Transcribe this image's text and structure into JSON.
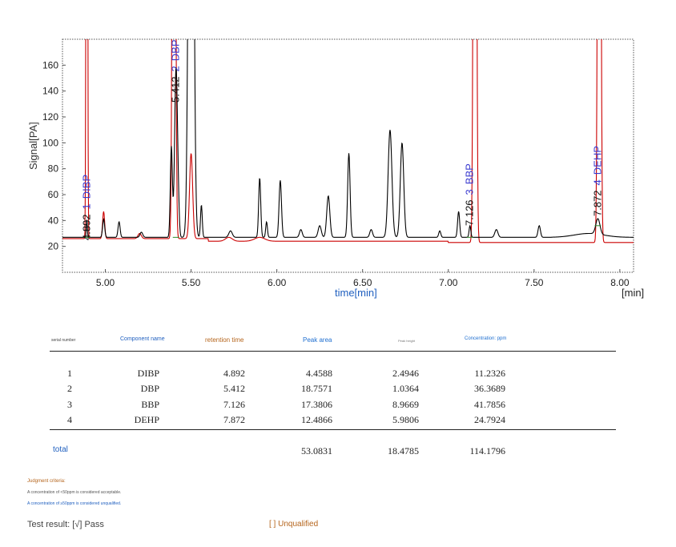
{
  "chart_data": {
    "type": "line",
    "ylabel": "Signal[PA]",
    "xlabel": "time[min]",
    "x_unit": "[min]",
    "xlim": [
      4.75,
      8.08
    ],
    "ylim": [
      0,
      180
    ],
    "x_ticks": [
      "5.00",
      "5.50",
      "6.00",
      "6.50",
      "7.00",
      "7.50",
      "8.00"
    ],
    "y_ticks": [
      "20",
      "40",
      "60",
      "80",
      "100",
      "120",
      "140",
      "160"
    ],
    "series": [
      {
        "color": "#cc0000",
        "baseline": 24,
        "peaks": [
          [
            4.892,
            0.0035,
            900
          ],
          [
            4.99,
            0.006,
            21
          ],
          [
            5.4,
            0.007,
            900
          ],
          [
            5.5,
            0.009,
            66
          ],
          [
            5.2,
            0.01,
            4
          ],
          [
            7.155,
            0.007,
            900
          ],
          [
            7.88,
            0.007,
            900
          ],
          [
            5.72,
            0.02,
            3
          ],
          [
            5.9,
            0.03,
            3
          ]
        ]
      },
      {
        "color": "#000000",
        "baseline": 27,
        "peaks": [
          [
            4.892,
            0.003,
            14
          ],
          [
            4.99,
            0.006,
            14
          ],
          [
            5.08,
            0.006,
            12
          ],
          [
            5.21,
            0.008,
            4
          ],
          [
            5.385,
            0.006,
            70
          ],
          [
            5.412,
            0.008,
            130
          ],
          [
            5.425,
            0.006,
            20
          ],
          [
            5.5,
            0.012,
            700
          ],
          [
            5.56,
            0.005,
            25
          ],
          [
            5.73,
            0.01,
            5
          ],
          [
            5.9,
            0.006,
            46
          ],
          [
            5.94,
            0.005,
            12
          ],
          [
            6.02,
            0.007,
            44
          ],
          [
            6.14,
            0.008,
            6
          ],
          [
            6.25,
            0.009,
            9
          ],
          [
            6.3,
            0.009,
            32
          ],
          [
            6.42,
            0.007,
            65
          ],
          [
            6.55,
            0.008,
            6
          ],
          [
            6.66,
            0.011,
            83
          ],
          [
            6.73,
            0.01,
            73
          ],
          [
            6.95,
            0.006,
            5
          ],
          [
            7.06,
            0.006,
            20
          ],
          [
            7.126,
            0.005,
            9
          ],
          [
            7.28,
            0.009,
            6
          ],
          [
            7.53,
            0.007,
            9
          ],
          [
            7.872,
            0.012,
            12
          ]
        ]
      }
    ],
    "annotations": [
      {
        "x": 4.892,
        "rt": "4.892",
        "num": "1",
        "name": "DIBP"
      },
      {
        "x": 5.412,
        "rt": "5.412",
        "num": "2",
        "name": "DBP"
      },
      {
        "x": 7.126,
        "rt": "7.126",
        "num": "3",
        "name": "BBP"
      },
      {
        "x": 7.872,
        "rt": "7.872",
        "num": "4",
        "name": "DEHP"
      }
    ]
  },
  "table": {
    "headers": {
      "serial": "serial number",
      "name": "Component name",
      "rt": "retention time",
      "area": "Peak area",
      "height": "Peak height",
      "conc": "Concentration: ppm"
    },
    "header_colors": {
      "serial": "#444444",
      "name": "#1f5fbf",
      "rt": "#b5651d",
      "area": "#1f6fd0",
      "height": "#777777",
      "conc": "#1f6fd0"
    },
    "rows": [
      {
        "serial": "1",
        "name": "DIBP",
        "rt": "4.892",
        "area": "4.4588",
        "height": "2.4946",
        "conc": "11.2326"
      },
      {
        "serial": "2",
        "name": "DBP",
        "rt": "5.412",
        "area": "18.7571",
        "height": "1.0364",
        "conc": "36.3689"
      },
      {
        "serial": "3",
        "name": "BBP",
        "rt": "7.126",
        "area": "17.3806",
        "height": "8.9669",
        "conc": "41.7856"
      },
      {
        "serial": "4",
        "name": "DEHP",
        "rt": "7.872",
        "area": "12.4866",
        "height": "5.9806",
        "conc": "24.7924"
      }
    ],
    "total": {
      "label": "total",
      "area": "53.0831",
      "height": "18.4785",
      "conc": "114.1796"
    }
  },
  "judgment": {
    "title": "Judgment criteria:",
    "line1": "A concentration of <50ppm is considered acceptable.",
    "line2": "A concentration of ≥50ppm is considered unqualified."
  },
  "result": {
    "label": "Test result: [√] Pass",
    "unqualified": "[ ] Unqualified"
  }
}
